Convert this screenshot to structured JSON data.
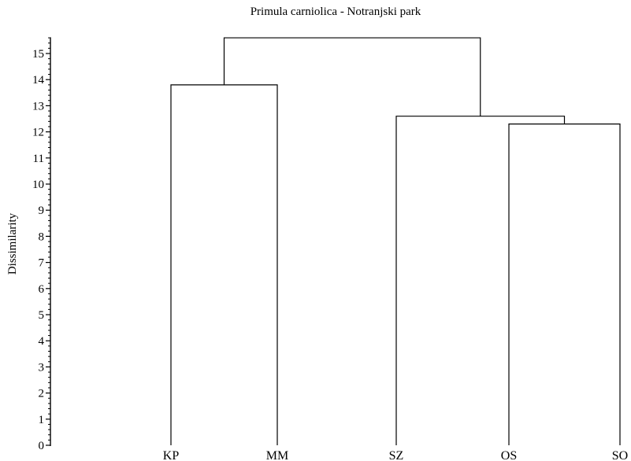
{
  "chart_data": {
    "type": "dendrogram",
    "title": "Primula carniolica - Notranjski park",
    "ylabel": "Dissimilarity",
    "ylim": [
      0,
      15.5
    ],
    "y_ticks": [
      0,
      1,
      2,
      3,
      4,
      5,
      6,
      7,
      8,
      9,
      10,
      11,
      12,
      13,
      14,
      15
    ],
    "leaves": [
      "KP",
      "MM",
      "SZ",
      "OS",
      "SO"
    ],
    "merges": [
      {
        "id": "n1",
        "children": [
          "OS",
          "SO"
        ],
        "height": 12.3
      },
      {
        "id": "n2",
        "children": [
          "SZ",
          "n1"
        ],
        "height": 12.6
      },
      {
        "id": "n3",
        "children": [
          "KP",
          "MM"
        ],
        "height": 13.8
      },
      {
        "id": "n4",
        "children": [
          "n3",
          "n2"
        ],
        "height": 15.6
      }
    ]
  }
}
